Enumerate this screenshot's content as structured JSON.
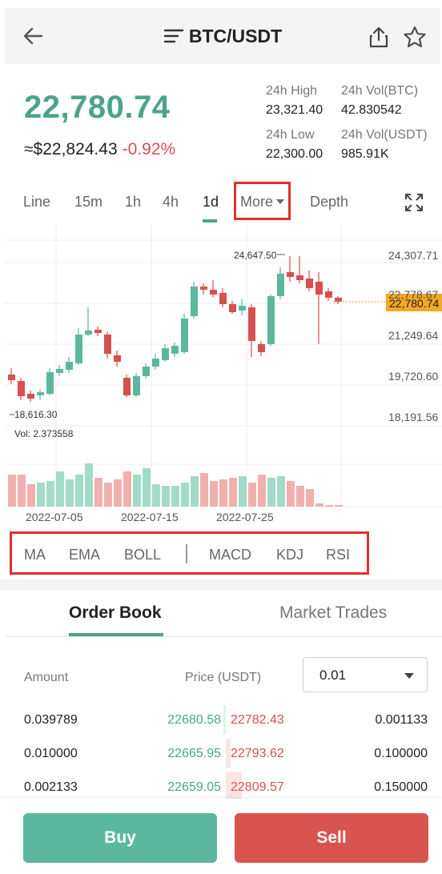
{
  "header": {
    "title": "BTC/USDT",
    "icons": [
      "back-arrow-icon",
      "menu-icon",
      "share-icon",
      "star-icon"
    ]
  },
  "ticker": {
    "last_price": "22,780.74",
    "fiat_price": "≈$22,824.43",
    "change": "-0.92%",
    "high_label": "24h High",
    "high_value": "23,321.40",
    "vol_btc_label": "24h Vol(BTC)",
    "vol_btc_value": "42.830542",
    "low_label": "24h Low",
    "low_value": "22,300.00",
    "vol_usdt_label": "24h Vol(USDT)",
    "vol_usdt_value": "985.91K"
  },
  "interval_tabs": [
    "Line",
    "15m",
    "1h",
    "4h",
    "1d",
    "More",
    "Depth"
  ],
  "active_interval": "1d",
  "chart": {
    "price_axis": [
      "24,307.71",
      "22,778.67",
      "21,249.64",
      "19,720.60",
      "18,191.56"
    ],
    "current_price_tag": "22,780.74",
    "max_label": "24,647.50",
    "min_label": "18,616.30",
    "volume_label": "Vol: 2.373558",
    "date_labels": [
      "2022-07-05",
      "2022-07-15",
      "2022-07-25"
    ],
    "colors": {
      "up": "#5bb89f",
      "down": "#d6504f",
      "price_tag": "#f5a623"
    }
  },
  "indicators": [
    "MA",
    "EMA",
    "BOLL",
    "MACD",
    "KDJ",
    "RSI"
  ],
  "book_tabs": {
    "order_book": "Order Book",
    "market_trades": "Market Trades"
  },
  "book_header": {
    "amount": "Amount",
    "price": "Price (USDT)",
    "precision": "0.01"
  },
  "book_rows": [
    {
      "bid_amount": "0.039789",
      "bid_price": "22680.58",
      "ask_price": "22782.43",
      "ask_amount": "0.001133"
    },
    {
      "bid_amount": "0.010000",
      "bid_price": "22665.95",
      "ask_price": "22793.62",
      "ask_amount": "0.100000"
    },
    {
      "bid_amount": "0.002133",
      "bid_price": "22659.05",
      "ask_price": "22809.57",
      "ask_amount": "0.150000"
    }
  ],
  "actions": {
    "buy": "Buy",
    "sell": "Sell"
  }
}
